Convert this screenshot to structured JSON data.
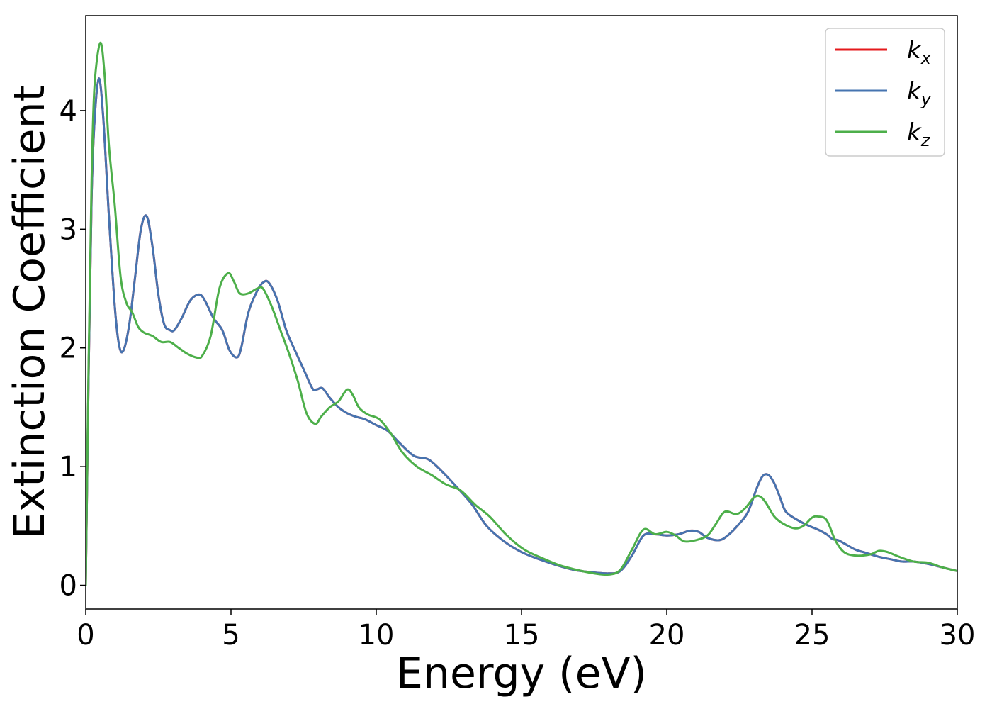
{
  "chart_data": {
    "type": "line",
    "title": "",
    "xlabel": "Energy (eV)",
    "ylabel": "Extinction Coefficient",
    "xlim": [
      0,
      30
    ],
    "ylim": [
      -0.2,
      4.8
    ],
    "xticks": [
      0,
      5,
      10,
      15,
      20,
      25,
      30
    ],
    "xtick_labels": [
      "0",
      "5",
      "10",
      "15",
      "20",
      "25",
      "30"
    ],
    "yticks": [
      0,
      1,
      2,
      3,
      4
    ],
    "ytick_labels": [
      "0",
      "1",
      "2",
      "3",
      "4"
    ],
    "grid": false,
    "legend_position": "top-right",
    "series": [
      {
        "name": "k_x",
        "legend_base": "k",
        "legend_sub": "x",
        "color": "#e41a1c",
        "x": [
          0,
          0.1,
          0.2,
          0.3,
          0.45,
          0.6,
          0.8,
          1.0,
          1.15,
          1.3,
          1.5,
          1.7,
          1.9,
          2.1,
          2.3,
          2.5,
          2.7,
          2.9,
          3.05,
          3.3,
          3.6,
          3.9,
          4.1,
          4.4,
          4.7,
          4.95,
          5.2,
          5.35,
          5.6,
          5.9,
          6.1,
          6.3,
          6.6,
          6.9,
          7.2,
          7.5,
          7.8,
          7.95,
          8.15,
          8.4,
          8.7,
          9.0,
          9.3,
          9.6,
          10.0,
          10.4,
          10.8,
          11.3,
          11.8,
          12.3,
          12.8,
          13.3,
          13.8,
          14.4,
          15.0,
          15.6,
          16.2,
          16.8,
          17.4,
          18.0,
          18.4,
          18.8,
          19.2,
          19.6,
          20.0,
          20.4,
          20.8,
          21.1,
          21.4,
          21.8,
          22.1,
          22.5,
          22.8,
          23.1,
          23.3,
          23.5,
          23.7,
          23.9,
          24.1,
          24.5,
          24.9,
          25.2,
          25.5,
          25.7,
          25.9,
          26.2,
          26.5,
          26.9,
          27.3,
          27.7,
          28.1,
          28.5,
          29.0,
          29.5,
          30.0
        ],
        "y": [
          0.0,
          1.8,
          3.25,
          3.9,
          4.27,
          3.95,
          3.1,
          2.35,
          2.02,
          1.98,
          2.2,
          2.6,
          3.0,
          3.11,
          2.85,
          2.45,
          2.2,
          2.15,
          2.15,
          2.25,
          2.4,
          2.45,
          2.4,
          2.25,
          2.15,
          1.98,
          1.92,
          2.0,
          2.3,
          2.48,
          2.55,
          2.55,
          2.4,
          2.15,
          1.98,
          1.82,
          1.66,
          1.65,
          1.66,
          1.58,
          1.5,
          1.45,
          1.42,
          1.4,
          1.35,
          1.3,
          1.2,
          1.09,
          1.06,
          0.95,
          0.82,
          0.68,
          0.5,
          0.37,
          0.28,
          0.22,
          0.17,
          0.13,
          0.11,
          0.1,
          0.12,
          0.25,
          0.42,
          0.43,
          0.42,
          0.43,
          0.46,
          0.45,
          0.4,
          0.38,
          0.42,
          0.52,
          0.62,
          0.82,
          0.92,
          0.93,
          0.86,
          0.74,
          0.62,
          0.55,
          0.5,
          0.47,
          0.43,
          0.39,
          0.38,
          0.34,
          0.3,
          0.27,
          0.24,
          0.22,
          0.2,
          0.2,
          0.18,
          0.15,
          0.12
        ]
      },
      {
        "name": "k_y",
        "legend_base": "k",
        "legend_sub": "y",
        "color": "#4674b0",
        "x": [
          0,
          0.1,
          0.2,
          0.3,
          0.45,
          0.6,
          0.8,
          1.0,
          1.15,
          1.3,
          1.5,
          1.7,
          1.9,
          2.1,
          2.3,
          2.5,
          2.7,
          2.9,
          3.05,
          3.3,
          3.6,
          3.9,
          4.1,
          4.4,
          4.7,
          4.95,
          5.2,
          5.35,
          5.6,
          5.9,
          6.1,
          6.3,
          6.6,
          6.9,
          7.2,
          7.5,
          7.8,
          7.95,
          8.15,
          8.4,
          8.7,
          9.0,
          9.3,
          9.6,
          10.0,
          10.4,
          10.8,
          11.3,
          11.8,
          12.3,
          12.8,
          13.3,
          13.8,
          14.4,
          15.0,
          15.6,
          16.2,
          16.8,
          17.4,
          18.0,
          18.4,
          18.8,
          19.2,
          19.6,
          20.0,
          20.4,
          20.8,
          21.1,
          21.4,
          21.8,
          22.1,
          22.5,
          22.8,
          23.1,
          23.3,
          23.5,
          23.7,
          23.9,
          24.1,
          24.5,
          24.9,
          25.2,
          25.5,
          25.7,
          25.9,
          26.2,
          26.5,
          26.9,
          27.3,
          27.7,
          28.1,
          28.5,
          29.0,
          29.5,
          30.0
        ],
        "y": [
          0.0,
          1.8,
          3.25,
          3.9,
          4.27,
          3.95,
          3.1,
          2.35,
          2.02,
          1.98,
          2.2,
          2.6,
          3.0,
          3.11,
          2.85,
          2.45,
          2.2,
          2.15,
          2.15,
          2.25,
          2.4,
          2.45,
          2.4,
          2.25,
          2.15,
          1.98,
          1.92,
          2.0,
          2.3,
          2.48,
          2.55,
          2.55,
          2.4,
          2.15,
          1.98,
          1.82,
          1.66,
          1.65,
          1.66,
          1.58,
          1.5,
          1.45,
          1.42,
          1.4,
          1.35,
          1.3,
          1.2,
          1.09,
          1.06,
          0.95,
          0.82,
          0.68,
          0.5,
          0.37,
          0.28,
          0.22,
          0.17,
          0.13,
          0.11,
          0.1,
          0.12,
          0.25,
          0.42,
          0.43,
          0.42,
          0.43,
          0.46,
          0.45,
          0.4,
          0.38,
          0.42,
          0.52,
          0.62,
          0.82,
          0.92,
          0.93,
          0.86,
          0.74,
          0.62,
          0.55,
          0.5,
          0.47,
          0.43,
          0.39,
          0.38,
          0.34,
          0.3,
          0.27,
          0.24,
          0.22,
          0.2,
          0.2,
          0.18,
          0.15,
          0.12
        ]
      },
      {
        "name": "k_z",
        "legend_base": "k",
        "legend_sub": "z",
        "color": "#4daf4a",
        "x": [
          0,
          0.1,
          0.2,
          0.3,
          0.5,
          0.65,
          0.8,
          1.0,
          1.2,
          1.4,
          1.6,
          1.8,
          2.0,
          2.3,
          2.6,
          2.9,
          3.2,
          3.5,
          3.8,
          4.0,
          4.3,
          4.6,
          4.9,
          5.1,
          5.3,
          5.6,
          5.9,
          6.1,
          6.4,
          6.7,
          7.0,
          7.3,
          7.6,
          7.9,
          8.1,
          8.4,
          8.7,
          9.0,
          9.2,
          9.4,
          9.7,
          10.1,
          10.5,
          10.9,
          11.4,
          11.9,
          12.4,
          12.9,
          13.4,
          13.9,
          14.5,
          15.1,
          15.7,
          16.3,
          16.9,
          17.5,
          18.0,
          18.4,
          18.8,
          19.2,
          19.6,
          20.0,
          20.3,
          20.6,
          21.0,
          21.4,
          21.7,
          22.0,
          22.4,
          22.7,
          23.0,
          23.2,
          23.4,
          23.7,
          24.0,
          24.4,
          24.7,
          25.0,
          25.2,
          25.5,
          25.8,
          26.1,
          26.5,
          27.0,
          27.3,
          27.6,
          28.0,
          28.5,
          29.0,
          29.5,
          30.0
        ],
        "y": [
          0.0,
          1.9,
          3.4,
          4.2,
          4.57,
          4.3,
          3.7,
          3.2,
          2.6,
          2.38,
          2.3,
          2.18,
          2.13,
          2.1,
          2.05,
          2.05,
          2.0,
          1.95,
          1.92,
          1.93,
          2.1,
          2.5,
          2.63,
          2.56,
          2.46,
          2.46,
          2.5,
          2.5,
          2.35,
          2.15,
          1.95,
          1.72,
          1.45,
          1.36,
          1.42,
          1.5,
          1.55,
          1.65,
          1.6,
          1.5,
          1.44,
          1.4,
          1.28,
          1.12,
          1.0,
          0.93,
          0.85,
          0.8,
          0.68,
          0.58,
          0.42,
          0.3,
          0.23,
          0.17,
          0.13,
          0.1,
          0.09,
          0.13,
          0.3,
          0.47,
          0.43,
          0.45,
          0.42,
          0.37,
          0.38,
          0.42,
          0.52,
          0.62,
          0.6,
          0.65,
          0.74,
          0.75,
          0.7,
          0.58,
          0.52,
          0.48,
          0.5,
          0.57,
          0.58,
          0.55,
          0.38,
          0.28,
          0.25,
          0.26,
          0.29,
          0.28,
          0.24,
          0.2,
          0.19,
          0.15,
          0.12
        ]
      }
    ]
  }
}
